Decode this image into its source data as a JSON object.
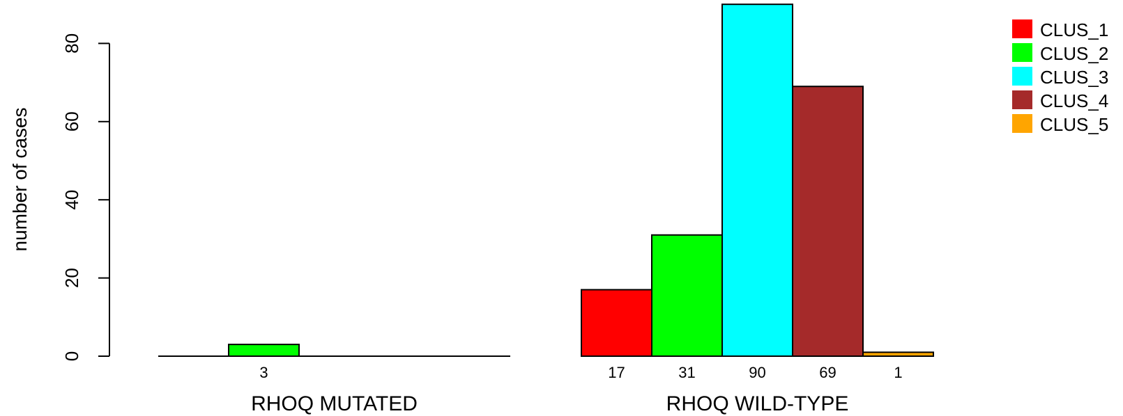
{
  "chart_data": {
    "type": "bar",
    "ylabel": "number of cases",
    "ylim": [
      0,
      90
    ],
    "yticks": [
      0,
      20,
      40,
      60,
      80
    ],
    "grid": false,
    "legend_position": "top-right",
    "series": [
      {
        "name": "CLUS_1",
        "color": "#ff0000"
      },
      {
        "name": "CLUS_2",
        "color": "#00ff00"
      },
      {
        "name": "CLUS_3",
        "color": "#00ffff"
      },
      {
        "name": "CLUS_4",
        "color": "#a52a2a"
      },
      {
        "name": "CLUS_5",
        "color": "#ffa500"
      }
    ],
    "groups": [
      {
        "label": "RHOQ MUTATED",
        "values": [
          0,
          3,
          0,
          0,
          0
        ]
      },
      {
        "label": "RHOQ WILD-TYPE",
        "values": [
          17,
          31,
          90,
          69,
          1
        ]
      }
    ]
  }
}
